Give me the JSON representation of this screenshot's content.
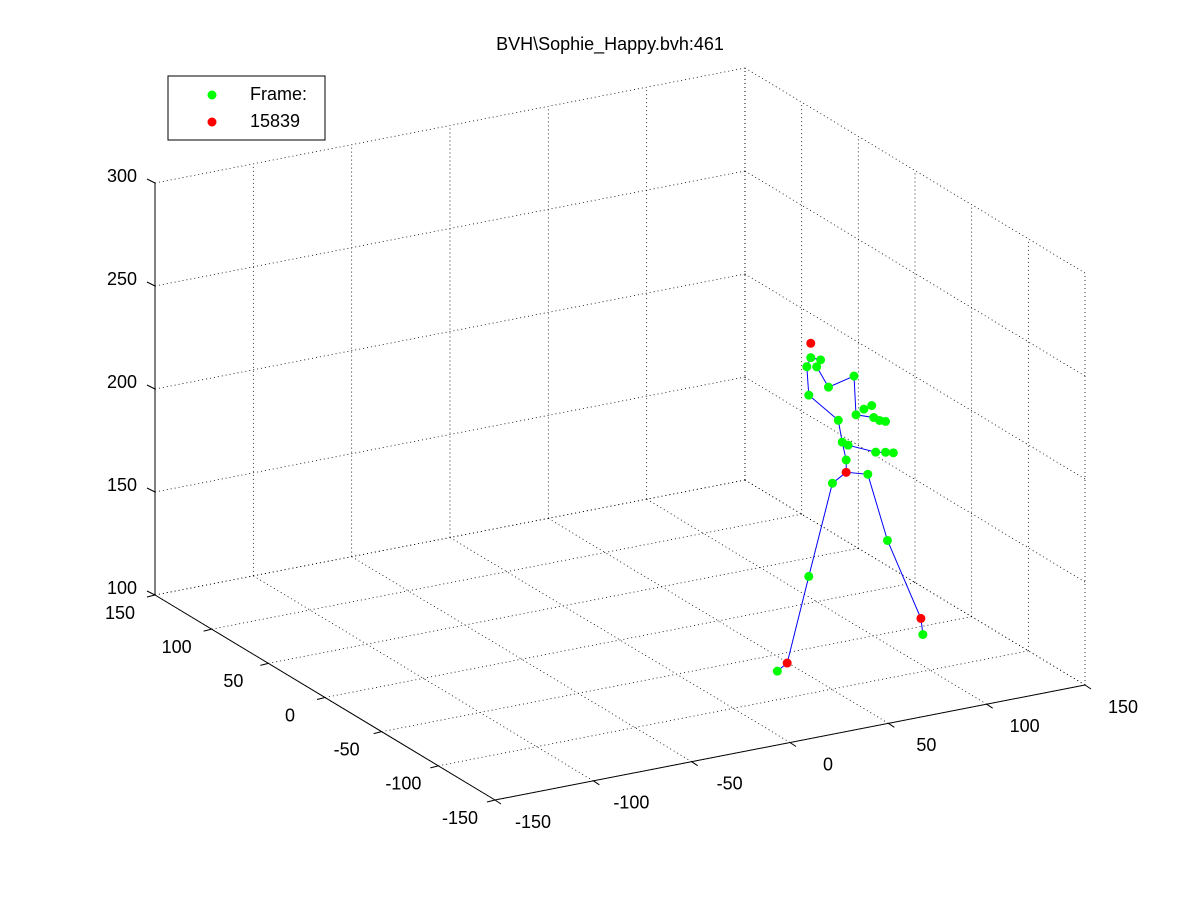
{
  "chart_data": {
    "type": "scatter3d",
    "title": "BVH\\Sophie_Happy.bvh:461",
    "xlim": [
      -150,
      150
    ],
    "ylim": [
      -150,
      150
    ],
    "zlim": [
      100,
      300
    ],
    "xticks": [
      -150,
      -100,
      -50,
      0,
      50,
      100,
      150
    ],
    "yticks": [
      -150,
      -100,
      -50,
      0,
      50,
      100,
      150
    ],
    "zticks": [
      100,
      150,
      200,
      250,
      300
    ],
    "grid": true,
    "legend_position": "upper-left",
    "series": [
      {
        "name": "Frame:",
        "color": "#00ff00",
        "x": [
          97,
          102,
          95,
          100,
          106,
          119,
          96,
          111,
          120,
          124,
          128,
          132,
          135,
          129,
          113,
          116,
          115,
          130,
          135,
          139,
          108,
          126,
          136,
          96,
          154,
          80
        ],
        "y": [
          0,
          0,
          0,
          0,
          0,
          0,
          0,
          0,
          0,
          0,
          0,
          0,
          0,
          0,
          0,
          0,
          0,
          0,
          0,
          0,
          0,
          0,
          0,
          0,
          0,
          0
        ],
        "z": [
          219,
          217,
          215,
          214,
          203,
          206,
          201,
          186,
          187,
          189,
          190,
          182,
          181,
          184,
          175,
          173,
          166,
          167,
          166,
          165,
          156,
          157,
          123,
          113,
          74,
          70
        ]
      },
      {
        "name": "15839",
        "color": "#ff0000",
        "x": [
          97,
          115,
          153,
          85
        ],
        "y": [
          0,
          0,
          0,
          0
        ],
        "z": [
          226,
          160,
          82,
          73
        ]
      }
    ],
    "lines": {
      "color": "#0000ff",
      "x": [
        80,
        85,
        96,
        108,
        115,
        126,
        136,
        153,
        154,
        null,
        115,
        115,
        113,
        111,
        96,
        95,
        97,
        102,
        100,
        106,
        119,
        120,
        129,
        135,
        null,
        116,
        130,
        139
      ],
      "y": [
        0,
        0,
        0,
        0,
        0,
        0,
        0,
        0,
        0,
        null,
        0,
        0,
        0,
        0,
        0,
        0,
        0,
        0,
        0,
        0,
        0,
        0,
        0,
        0,
        null,
        0,
        0,
        0
      ],
      "z": [
        70,
        73,
        113,
        156,
        160,
        157,
        123,
        82,
        74,
        null,
        160,
        166,
        175,
        186,
        201,
        215,
        219,
        217,
        214,
        203,
        206,
        187,
        184,
        181,
        null,
        173,
        167,
        165
      ]
    }
  }
}
